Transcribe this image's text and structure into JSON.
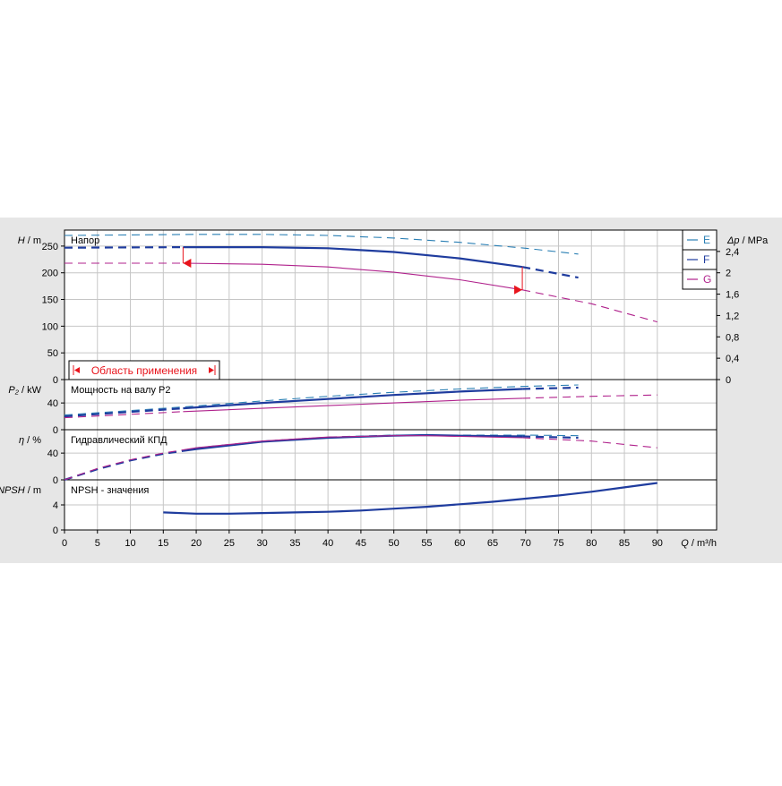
{
  "colors": {
    "panel_bg": "#e6e6e6",
    "plot_bg": "#ffffff",
    "grid": "#c6c6c6",
    "axis": "#000000",
    "curve_e": "#2a7fb4",
    "curve_f": "#1f3c9e",
    "curve_g": "#b0228c",
    "range_marker": "#e8141c"
  },
  "legend": [
    {
      "label": "E",
      "color": "#2a7fb4"
    },
    {
      "label": "F",
      "color": "#1f3c9e"
    },
    {
      "label": "G",
      "color": "#b0228c"
    }
  ],
  "range_label": "Область применения",
  "chart_data": [
    {
      "type": "line",
      "id": "head",
      "title": "Напор",
      "ylabel_symbol": "H",
      "ylabel_unit": "m",
      "ylim": [
        0,
        280
      ],
      "yticks": [
        0,
        50,
        100,
        150,
        200,
        250
      ],
      "ylabel2_symbol": "Δp",
      "ylabel2_unit": "MPa",
      "y2lim": [
        0,
        2.8
      ],
      "y2ticks": [
        "0",
        "0,4",
        "0,8",
        "1,2",
        "1,6",
        "2",
        "2,4"
      ],
      "grid": true,
      "series": [
        {
          "name": "E",
          "style": "dashed",
          "x": [
            0,
            20,
            30,
            40,
            50,
            60,
            70,
            78
          ],
          "y": [
            270,
            272,
            272,
            270,
            265,
            257,
            246,
            235
          ]
        },
        {
          "name": "F",
          "style": "solid",
          "solid_range": [
            18,
            69.5
          ],
          "x": [
            0,
            18,
            30,
            40,
            50,
            60,
            69.5,
            78
          ],
          "y": [
            247,
            248,
            248,
            246,
            239,
            227,
            211,
            191
          ]
        },
        {
          "name": "G",
          "style": "solid",
          "solid_range": [
            18,
            69.5
          ],
          "x": [
            0,
            18,
            30,
            40,
            50,
            60,
            69.5,
            80,
            90
          ],
          "y": [
            218,
            218,
            216,
            211,
            201,
            187,
            168,
            142,
            108
          ]
        }
      ]
    },
    {
      "type": "line",
      "id": "power",
      "title": "Мощность на валу P2",
      "ylabel_symbol": "P₂",
      "ylabel_unit": "kW",
      "ylim": [
        0,
        75
      ],
      "yticks": [
        0,
        40
      ],
      "grid": true,
      "series": [
        {
          "name": "E",
          "style": "dashed",
          "x": [
            0,
            18,
            30,
            40,
            50,
            60,
            70,
            78
          ],
          "y": [
            22,
            34,
            43,
            50,
            56,
            61,
            65,
            67
          ]
        },
        {
          "name": "F",
          "style": "solid",
          "solid_range": [
            18,
            69.5
          ],
          "x": [
            0,
            18,
            30,
            40,
            50,
            60,
            69.5,
            78
          ],
          "y": [
            20,
            32,
            40,
            46,
            52,
            57,
            61,
            63
          ]
        },
        {
          "name": "G",
          "style": "solid",
          "solid_range": [
            18,
            69.5
          ],
          "x": [
            0,
            18,
            30,
            40,
            50,
            60,
            69.5,
            80,
            90
          ],
          "y": [
            18,
            27,
            32,
            36,
            40,
            44,
            47,
            50,
            52
          ]
        }
      ]
    },
    {
      "type": "line",
      "id": "efficiency",
      "title": "Гидравлический КПД",
      "ylabel_symbol": "η",
      "ylabel_unit": "%",
      "ylim": [
        0,
        75
      ],
      "yticks": [
        0,
        40
      ],
      "grid": true,
      "series": [
        {
          "name": "E",
          "style": "dashed",
          "x": [
            0,
            5,
            10,
            15,
            20,
            30,
            40,
            50,
            55,
            60,
            70,
            78
          ],
          "y": [
            0,
            16,
            29,
            39,
            48,
            58,
            64,
            67,
            67,
            67,
            67,
            66
          ]
        },
        {
          "name": "F",
          "style": "solid",
          "solid_range": [
            18,
            69.5
          ],
          "x": [
            0,
            5,
            10,
            15,
            20,
            30,
            40,
            50,
            55,
            60,
            69.5,
            78
          ],
          "y": [
            0,
            16,
            29,
            39,
            46,
            57,
            63,
            66,
            67,
            66,
            65,
            63
          ]
        },
        {
          "name": "G",
          "style": "solid",
          "solid_range": [
            18,
            69.5
          ],
          "x": [
            0,
            5,
            10,
            15,
            20,
            30,
            40,
            50,
            55,
            60,
            69.5,
            80,
            90
          ],
          "y": [
            0,
            17,
            30,
            40,
            48,
            58,
            64,
            66,
            66,
            65,
            63,
            58,
            48
          ]
        }
      ]
    },
    {
      "type": "line",
      "id": "npsh",
      "title": "NPSH - значения",
      "ylabel_symbol": "NPSH",
      "ylabel_unit": "m",
      "ylim": [
        0,
        8
      ],
      "yticks": [
        0,
        4
      ],
      "grid": true,
      "xlabel_symbol": "Q",
      "xlabel_unit": "m³/h",
      "xlim": [
        0,
        99
      ],
      "xticks": [
        0,
        5,
        10,
        15,
        20,
        25,
        30,
        35,
        40,
        45,
        50,
        55,
        60,
        65,
        70,
        75,
        80,
        85,
        90
      ],
      "series": [
        {
          "name": "F",
          "style": "solid",
          "x": [
            15,
            20,
            25,
            30,
            35,
            40,
            45,
            50,
            55,
            60,
            65,
            70,
            75,
            80,
            85,
            90
          ],
          "y": [
            2.8,
            2.6,
            2.6,
            2.7,
            2.8,
            2.9,
            3.1,
            3.4,
            3.7,
            4.1,
            4.5,
            5.0,
            5.5,
            6.1,
            6.8,
            7.5
          ]
        }
      ]
    }
  ]
}
